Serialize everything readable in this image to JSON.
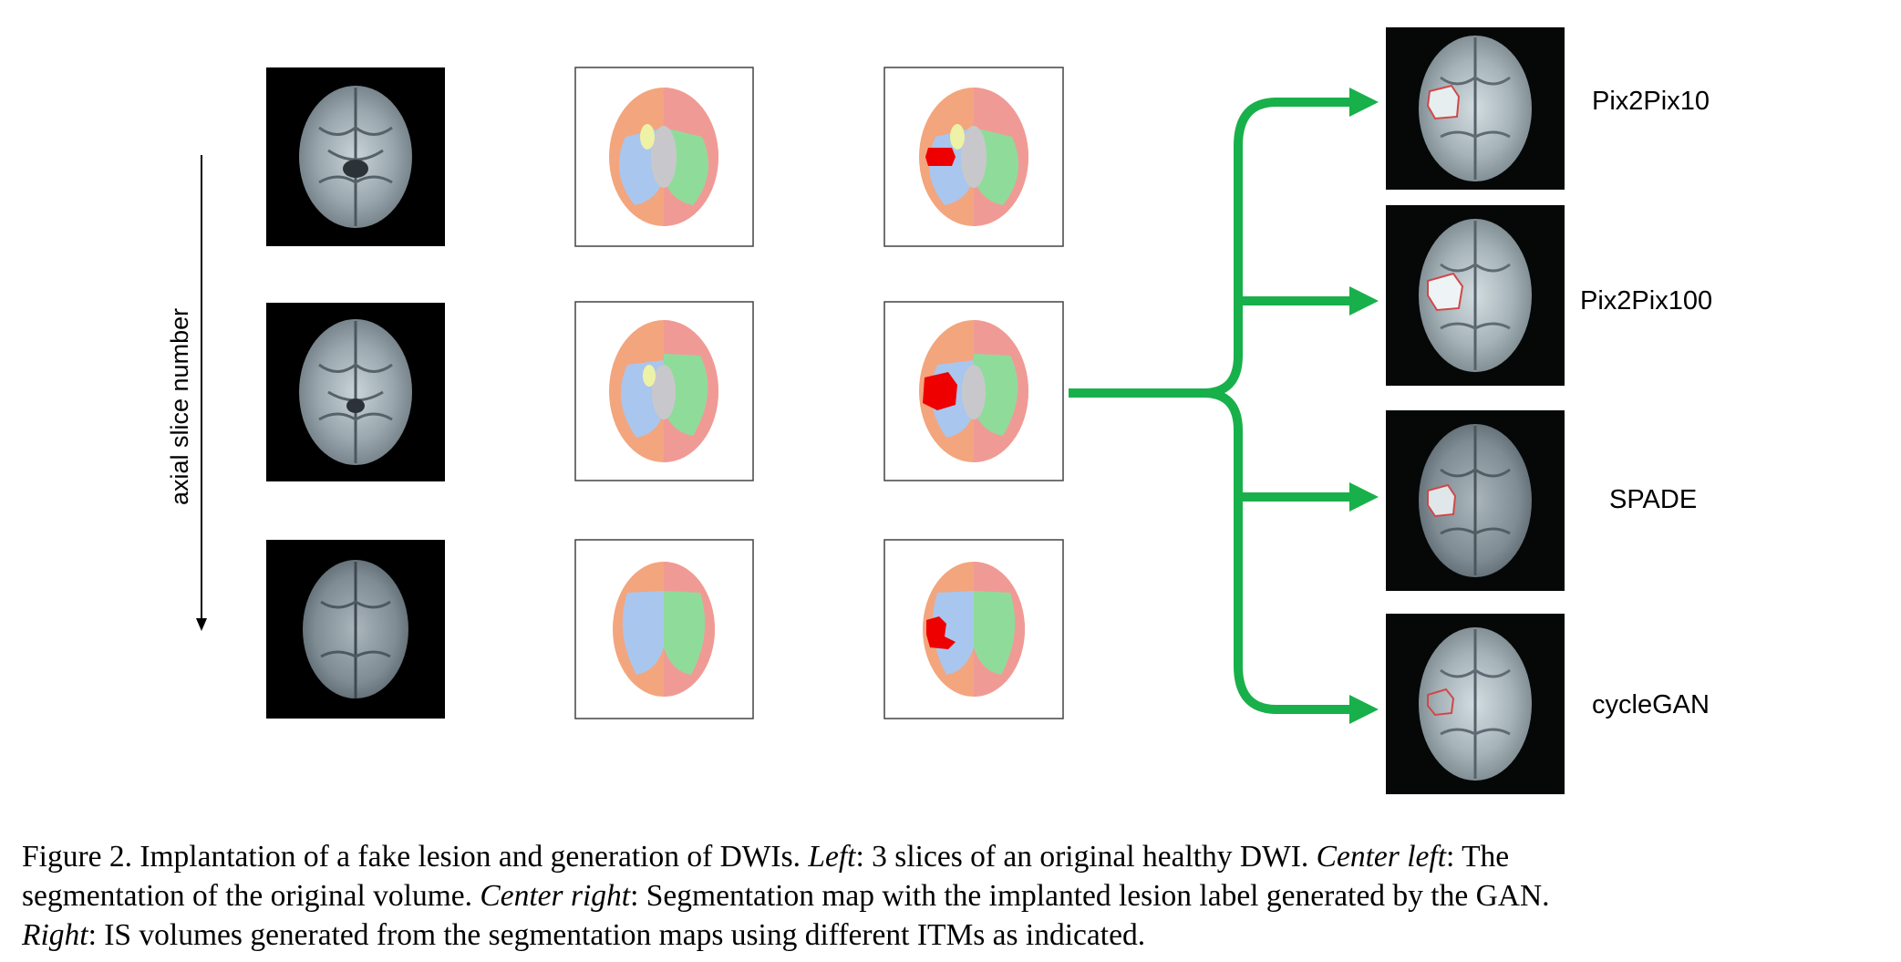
{
  "figure": {
    "axis_label": "axial slice number",
    "methods": [
      "Pix2Pix10",
      "Pix2Pix100",
      "SPADE",
      "cycleGAN"
    ],
    "colors": {
      "arrow_green": "#18b04a",
      "seg_orange": "#f3a57d",
      "seg_pink": "#f09a96",
      "seg_blue": "#a9c6ee",
      "seg_green": "#8fdc9a",
      "seg_gray": "#c8c8cc",
      "seg_yellow": "#eef2a6",
      "lesion_red": "#ee0000"
    }
  },
  "caption": {
    "label": "Figure 2.",
    "text1": " Implantation of a fake lesion and generation of DWIs. ",
    "left_label": "Left",
    "text2": ": 3 slices of an original healthy DWI. ",
    "center_left_label": "Center left",
    "text3": ": The",
    "text4": "segmentation of the original volume. ",
    "center_right_label": "Center right",
    "text5": ": Segmentation map with the implanted lesion label generated by the GAN.",
    "right_label": "Right",
    "text6": ": IS volumes generated from the segmentation maps using different ITMs as indicated."
  }
}
